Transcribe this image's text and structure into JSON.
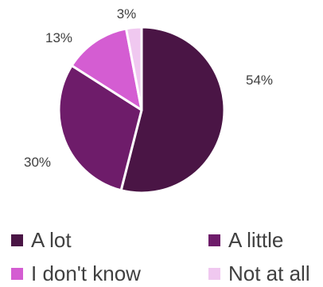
{
  "chart_data": {
    "type": "pie",
    "title": "",
    "slices": [
      {
        "label": "A lot",
        "value": 54,
        "data_label": "54%",
        "color": "#4a1545"
      },
      {
        "label": "A little",
        "value": 30,
        "data_label": "30%",
        "color": "#6e1c6a"
      },
      {
        "label": "I don't know",
        "value": 13,
        "data_label": "13%",
        "color": "#d45dd2"
      },
      {
        "label": "Not at all",
        "value": 3,
        "data_label": "3%",
        "color": "#f0c8f0"
      }
    ],
    "legend_position": "bottom"
  }
}
